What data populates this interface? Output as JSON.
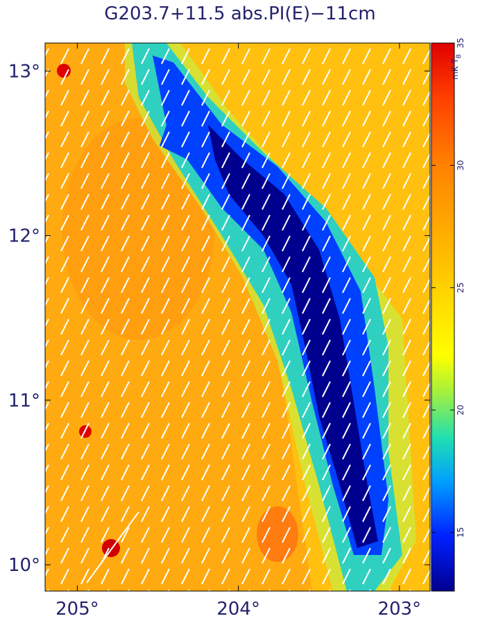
{
  "chart_data": {
    "type": "image",
    "title": "G203.7+11.5  abs.PI(E)−11cm",
    "xlim": [
      205.2,
      202.81
    ],
    "ylim": [
      9.84,
      13.17
    ],
    "xticks": [
      {
        "value": 205,
        "label": "205°"
      },
      {
        "value": 204,
        "label": "204°"
      },
      {
        "value": 203,
        "label": "203°"
      }
    ],
    "yticks": [
      {
        "value": 10,
        "label": "10°"
      },
      {
        "value": 11,
        "label": "11°"
      },
      {
        "value": 12,
        "label": "12°"
      },
      {
        "value": 13,
        "label": "13°"
      }
    ],
    "colorbar": {
      "label": "mK T",
      "label_sub": "B",
      "lim": [
        12.6,
        35
      ],
      "ticks": [
        15,
        20,
        25,
        30,
        35
      ]
    }
  }
}
